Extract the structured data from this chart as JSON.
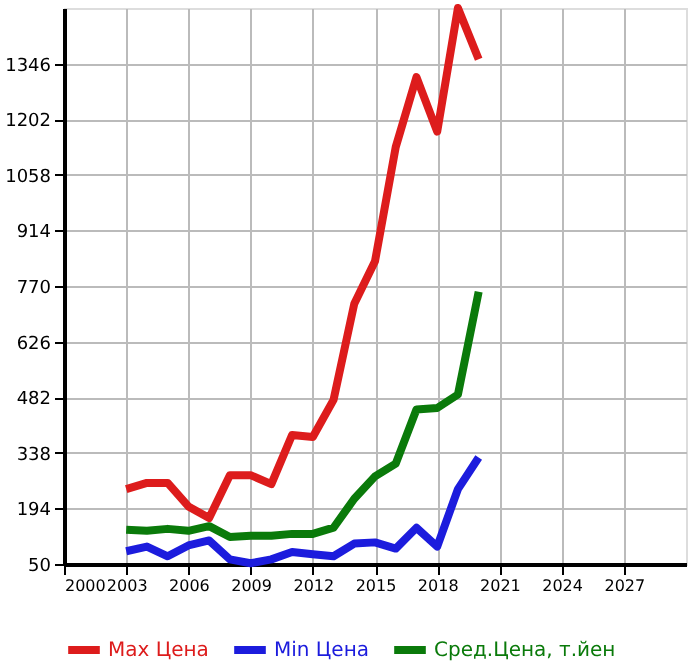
{
  "chart_data": {
    "type": "line",
    "x": [
      2003,
      2004,
      2005,
      2006,
      2007,
      2008,
      2009,
      2010,
      2011,
      2012,
      2013,
      2014,
      2015,
      2016,
      2017,
      2018,
      2019,
      2020
    ],
    "series": [
      {
        "name": "Max Цена",
        "color": "#dd1c1c",
        "values": [
          244,
          260,
          260,
          199,
          169,
          280,
          280,
          257,
          384,
          379,
          475,
          724,
          834,
          1130,
          1311,
          1170,
          1490,
          1357
        ]
      },
      {
        "name": "Min Цена",
        "color": "#1c1cdd",
        "values": [
          83,
          95,
          70,
          98,
          111,
          62,
          52,
          62,
          81,
          75,
          70,
          103,
          106,
          90,
          144,
          95,
          244,
          326
        ]
      },
      {
        "name": "Сред.Цена, т.йен",
        "color": "#0a7a0a",
        "values": [
          139,
          136,
          141,
          136,
          148,
          120,
          123,
          123,
          128,
          128,
          144,
          219,
          277,
          310,
          450,
          454,
          489,
          755
        ]
      }
    ],
    "xlim": [
      2000,
      2030
    ],
    "xticks": [
      2000,
      2003,
      2006,
      2009,
      2012,
      2015,
      2018,
      2021,
      2024,
      2027
    ],
    "ylim": [
      50,
      1490
    ],
    "yticks": [
      50,
      194,
      338,
      482,
      626,
      770,
      914,
      1058,
      1202,
      1346
    ],
    "grid": true,
    "legend": "bottom",
    "marker": "none",
    "line_style": "solid"
  }
}
